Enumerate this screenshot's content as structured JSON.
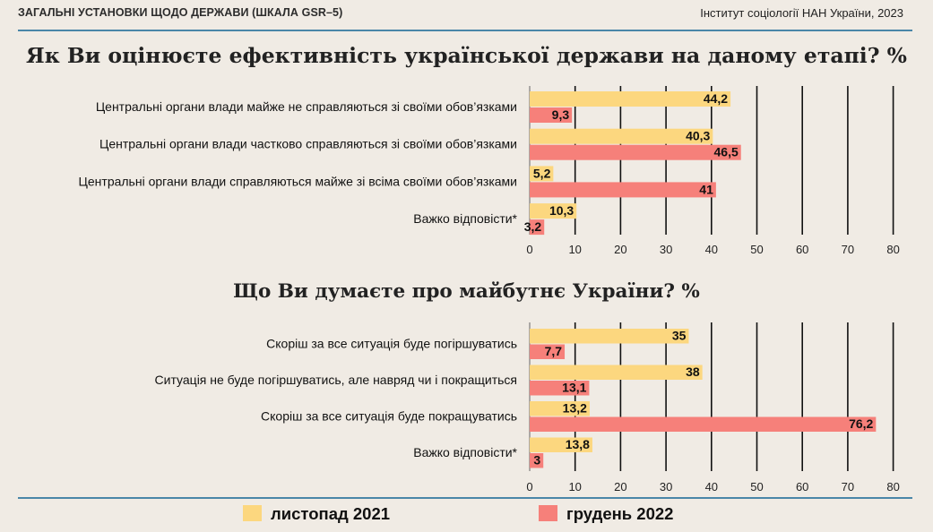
{
  "header": {
    "left_text": "ЗАГАЛЬНІ УСТАНОВКИ ЩОДО ДЕРЖАВИ (ШКАЛА GSR–5)",
    "right_text": "Інститут соціології НАН України, 2023"
  },
  "colors": {
    "series_2021": "#fcd77f",
    "series_2022": "#f6807a",
    "rule": "#4a86a8",
    "background": "#f0ebe4"
  },
  "legend": [
    {
      "label": "листопад 2021",
      "color": "#fcd77f"
    },
    {
      "label": "грудень 2022",
      "color": "#f6807a"
    }
  ],
  "chart_data": [
    {
      "type": "bar",
      "orientation": "horizontal",
      "title": "Як Ви оцінюєте ефективність української держави на даному етапі? %",
      "categories": [
        "Центральні органи влади майже не справляються зі своїми обов’язками",
        "Центральні органи влади частково справляються зі своїми обов’язками",
        "Центральні органи влади справляються майже зі всіма своїми обов’язками",
        "Важко відповісти*"
      ],
      "series": [
        {
          "name": "листопад 2021",
          "values": [
            44.2,
            40.3,
            5.2,
            10.3
          ],
          "labels": [
            "44,2",
            "40,3",
            "5,2",
            "10,3"
          ]
        },
        {
          "name": "грудень 2022",
          "values": [
            9.3,
            46.5,
            41,
            3.2
          ],
          "labels": [
            "9,3",
            "46,5",
            "41",
            "3,2"
          ]
        }
      ],
      "xlim": [
        0,
        80
      ],
      "xticks": [
        0,
        10,
        20,
        30,
        40,
        50,
        60,
        70,
        80
      ],
      "grid": true
    },
    {
      "type": "bar",
      "orientation": "horizontal",
      "title": "Що Ви думаєте про майбутнє України? %",
      "categories": [
        "Скоріш за все ситуація буде погіршуватись",
        "Ситуація не буде погіршуватись, але навряд чи і покращиться",
        "Скоріш за все ситуація буде покращуватись",
        "Важко відповісти*"
      ],
      "series": [
        {
          "name": "листопад 2021",
          "values": [
            35,
            38,
            13.2,
            13.8
          ],
          "labels": [
            "35",
            "38",
            "13,2",
            "13,8"
          ]
        },
        {
          "name": "грудень 2022",
          "values": [
            7.7,
            13.1,
            76.2,
            3
          ],
          "labels": [
            "7,7",
            "13,1",
            "76,2",
            "3"
          ]
        }
      ],
      "xlim": [
        0,
        80
      ],
      "xticks": [
        0,
        10,
        20,
        30,
        40,
        50,
        60,
        70,
        80
      ],
      "grid": true
    }
  ]
}
